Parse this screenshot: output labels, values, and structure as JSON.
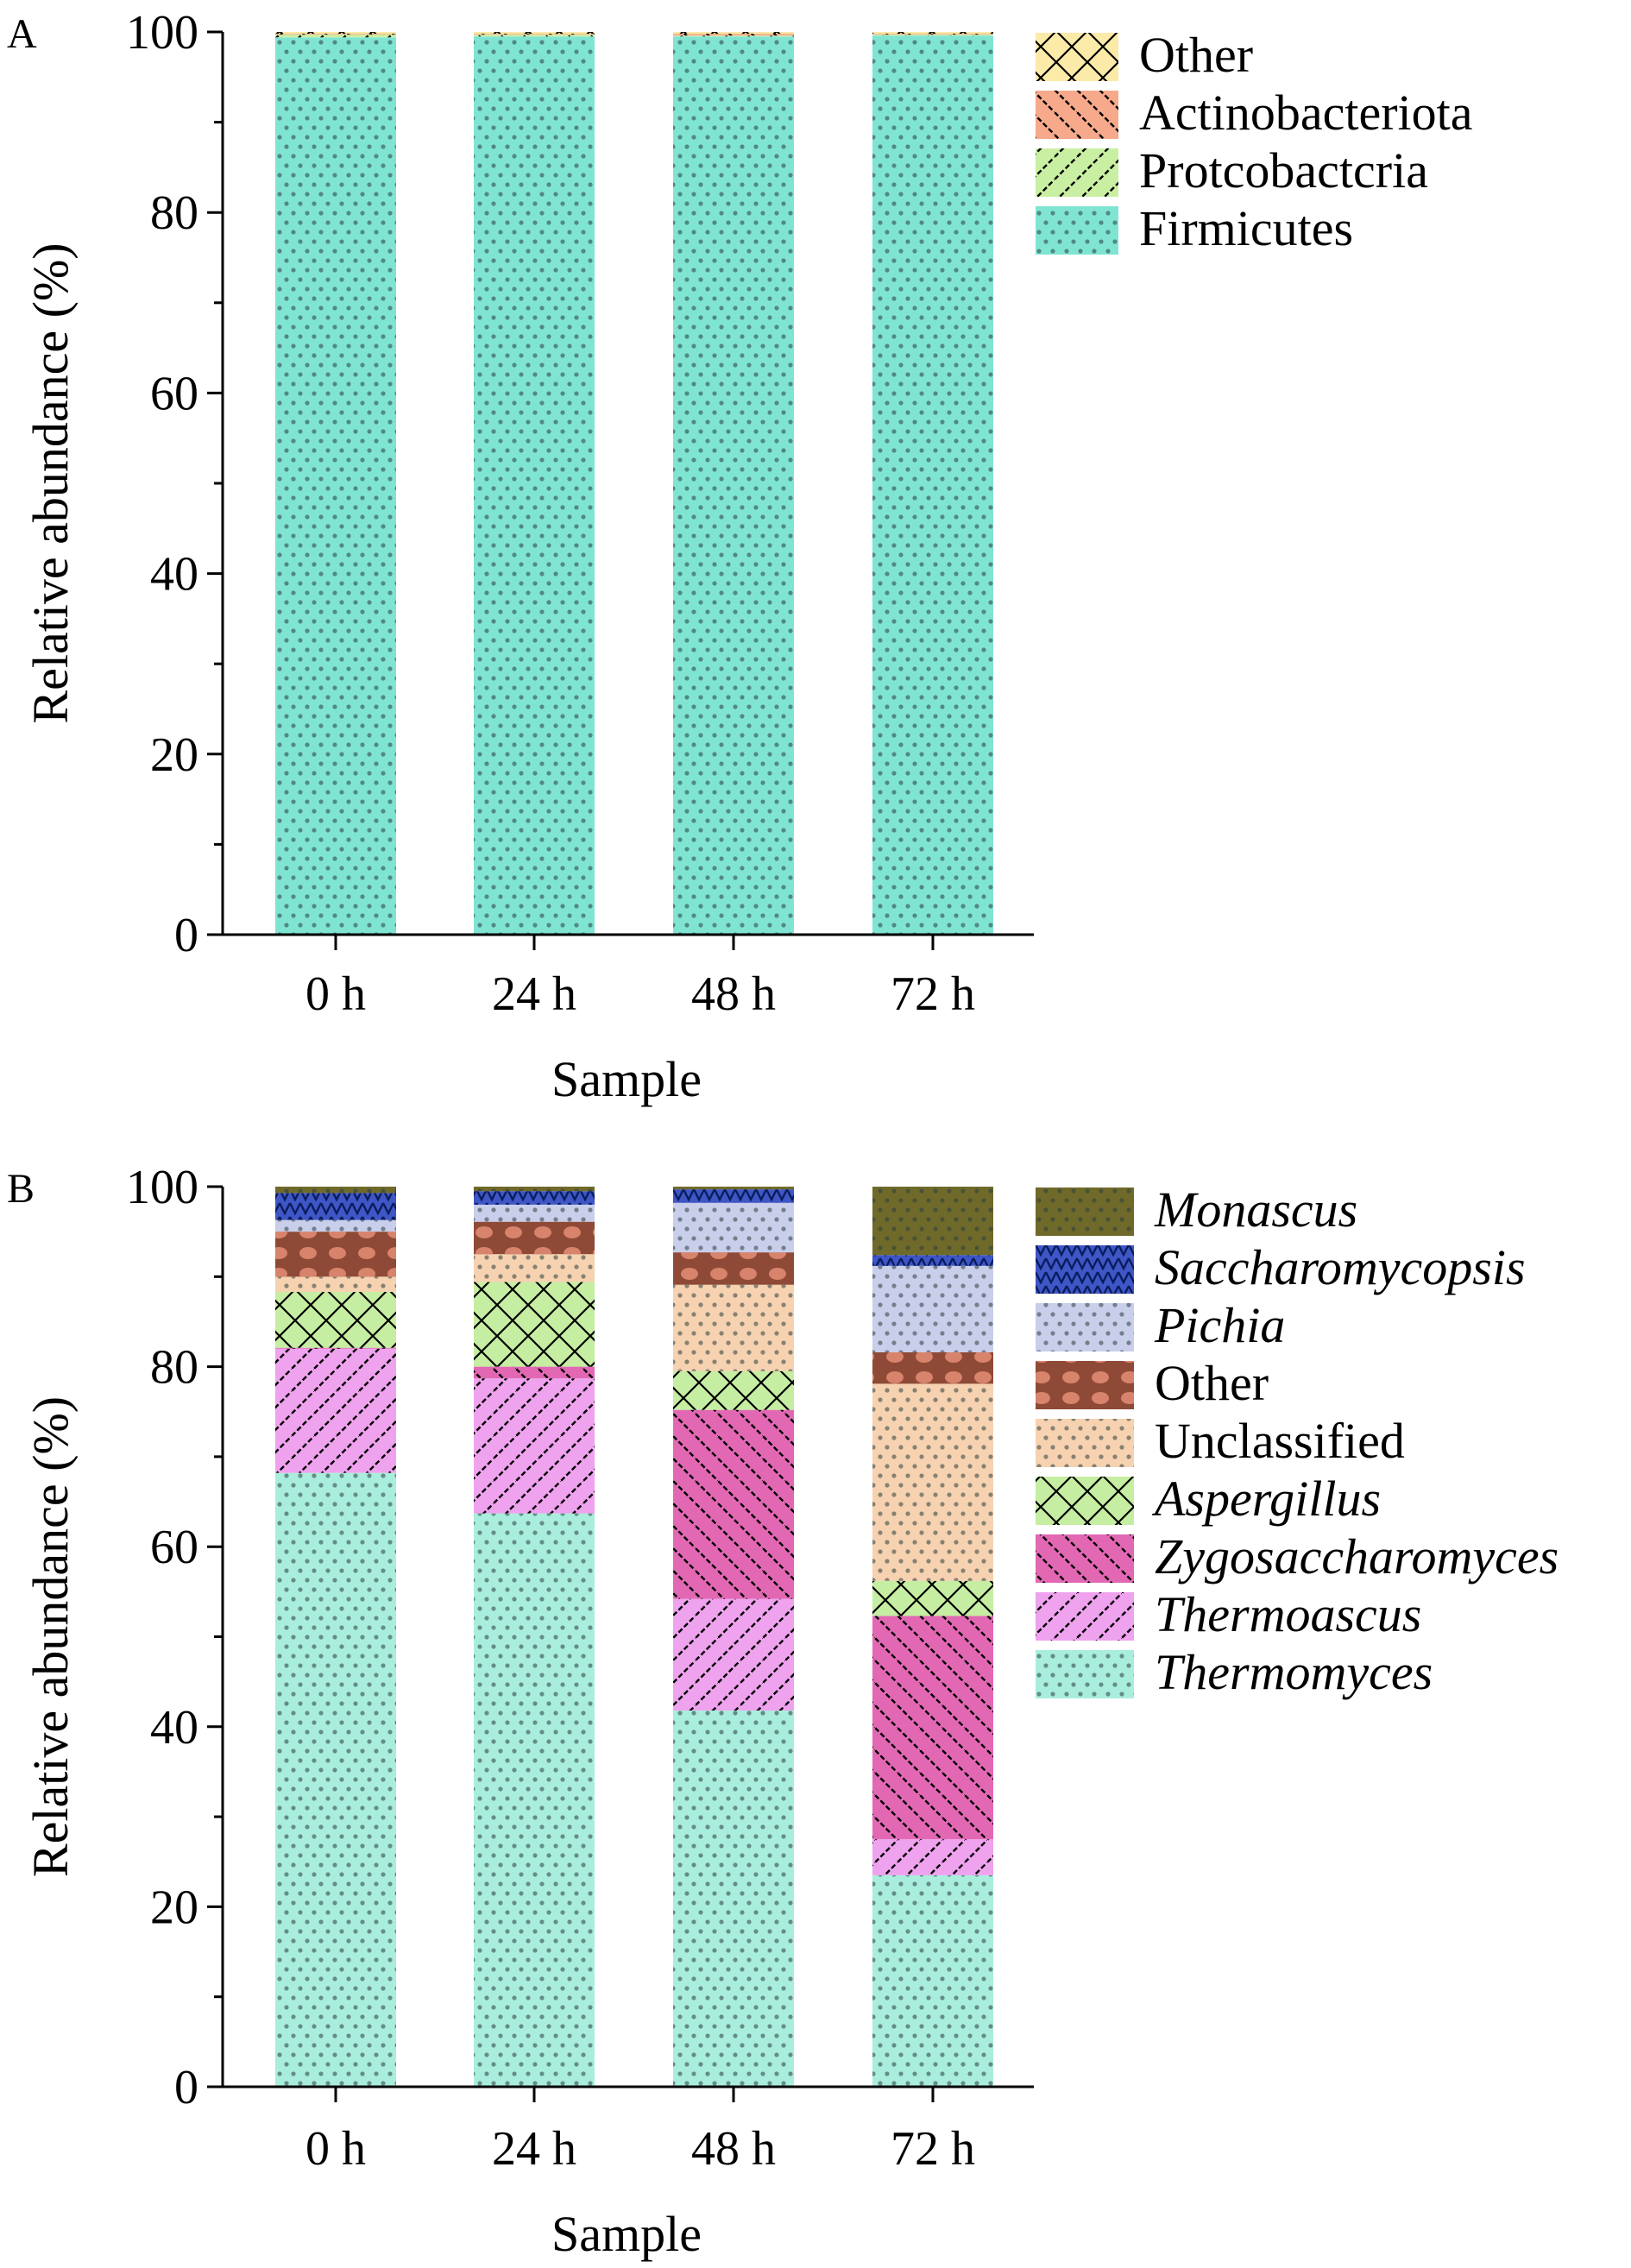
{
  "chart_data": [
    {
      "panel": "A",
      "type": "bar",
      "stacked": true,
      "categories": [
        "0 h",
        "24 h",
        "48 h",
        "72 h"
      ],
      "xlabel": "Sample",
      "ylabel": "Relative abundance (%)",
      "ylim": [
        0,
        100
      ],
      "yticks": [
        0,
        20,
        40,
        60,
        80,
        100
      ],
      "grid": false,
      "legend_position": "right",
      "series": [
        {
          "name": "Firmicutes",
          "color": "#7FE5D2",
          "pattern": "dots",
          "italic": false,
          "values": [
            99.4,
            99.5,
            99.5,
            99.6
          ]
        },
        {
          "name": "Protcobactcria",
          "color": "#C9F0A2",
          "pattern": "slash",
          "italic": false,
          "values": [
            0.3,
            0.2,
            0.1,
            0.1
          ]
        },
        {
          "name": "Actinobacteriota",
          "color": "#F6A98B",
          "pattern": "backslash",
          "italic": false,
          "values": [
            0.1,
            0.1,
            0.2,
            0.1
          ]
        },
        {
          "name": "Other",
          "color": "#FBEAA8",
          "pattern": "crosshatch",
          "italic": false,
          "values": [
            0.2,
            0.2,
            0.2,
            0.2
          ]
        }
      ]
    },
    {
      "panel": "B",
      "type": "bar",
      "stacked": true,
      "categories": [
        "0 h",
        "24 h",
        "48 h",
        "72 h"
      ],
      "xlabel": "Sample",
      "ylabel": "Relative abundance (%)",
      "ylim": [
        0,
        100
      ],
      "yticks": [
        0,
        20,
        40,
        60,
        80,
        100
      ],
      "grid": false,
      "legend_position": "right",
      "series": [
        {
          "name": "Thermomyces",
          "color": "#A9EEDD",
          "pattern": "dots",
          "italic": true,
          "values": [
            68.2,
            63.7,
            41.8,
            23.5
          ]
        },
        {
          "name": "Thermoascus",
          "color": "#EFA2EE",
          "pattern": "slash",
          "italic": true,
          "values": [
            13.8,
            15.0,
            12.4,
            4.0
          ]
        },
        {
          "name": "Zygosaccharomyces",
          "color": "#E268B4",
          "pattern": "backslash",
          "italic": true,
          "values": [
            0.1,
            1.3,
            21.0,
            24.8
          ]
        },
        {
          "name": "Aspergillus",
          "color": "#C5EEA2",
          "pattern": "crosshatch",
          "italic": true,
          "values": [
            6.2,
            9.4,
            4.3,
            3.9
          ]
        },
        {
          "name": "Unclassified",
          "color": "#F6D2B0",
          "pattern": "dots",
          "italic": false,
          "values": [
            1.7,
            3.1,
            9.6,
            21.9
          ]
        },
        {
          "name": "Other",
          "color": "#8E4A36",
          "pattern": "circles",
          "italic": false,
          "values": [
            5.0,
            3.6,
            3.6,
            3.5
          ]
        },
        {
          "name": "Pichia",
          "color": "#C9CEEA",
          "pattern": "dots",
          "italic": true,
          "values": [
            1.3,
            1.9,
            5.5,
            9.6
          ]
        },
        {
          "name": "Saccharomycopsis",
          "color": "#3E56C6",
          "pattern": "waves",
          "italic": true,
          "values": [
            3.0,
            1.5,
            1.5,
            1.2
          ]
        },
        {
          "name": "Monascus",
          "color": "#6F6A2A",
          "pattern": "dots",
          "italic": true,
          "values": [
            0.7,
            0.5,
            0.3,
            7.6
          ]
        }
      ]
    }
  ]
}
